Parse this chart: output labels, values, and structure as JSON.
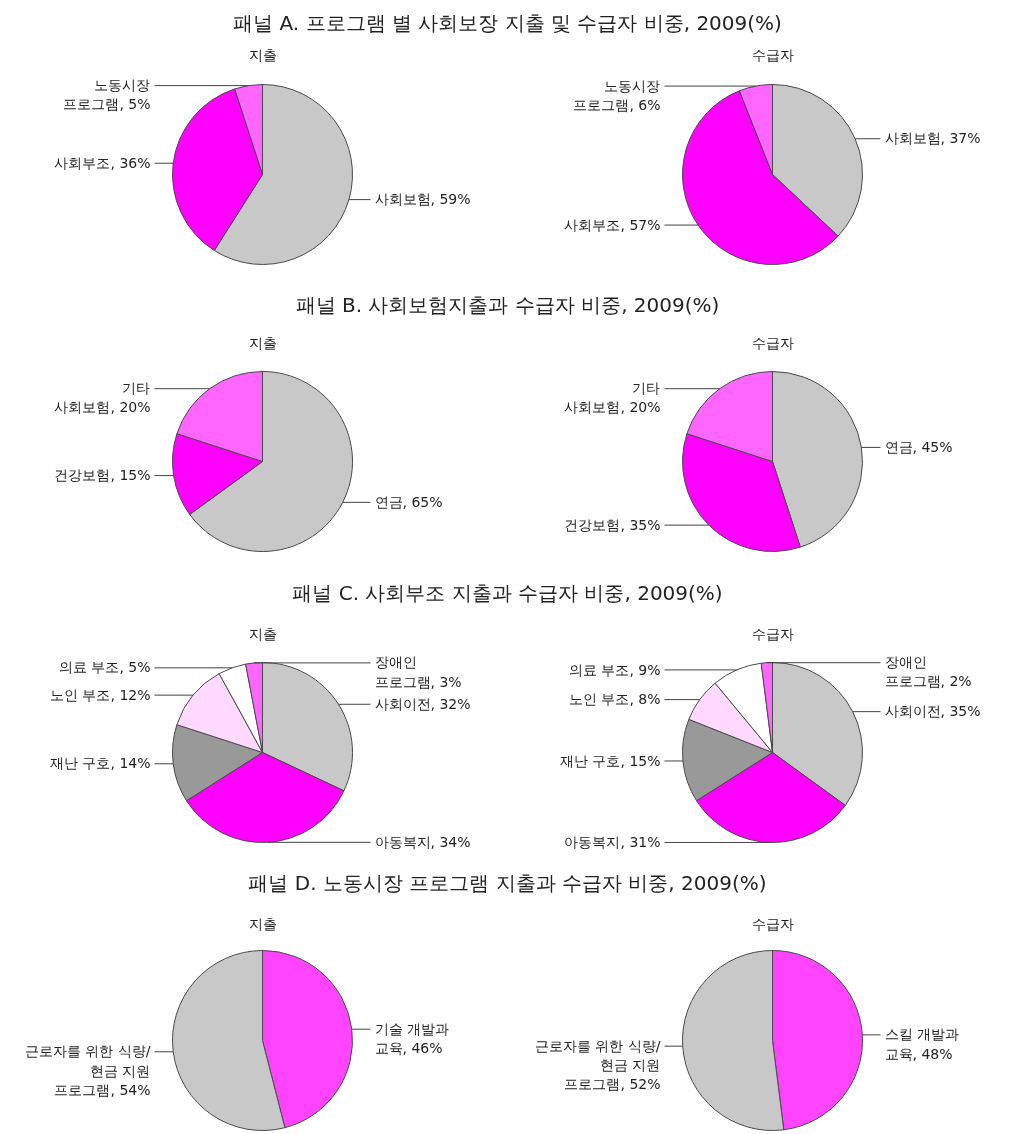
{
  "chart_data": [
    {
      "type": "pie",
      "title": "패널 A. 프로그램 별 사회보장 지출 및 수급자 비중, 2009(%)",
      "subtitle": "지출",
      "categories": [
        "사회보험",
        "사회부조",
        "노동시장\n프로그램"
      ],
      "values": [
        59,
        36,
        5
      ],
      "value_labels": [
        "59%",
        "36%",
        "5%"
      ],
      "colors": [
        "#c8c8c8",
        "#ff00ff",
        "#ff66ff"
      ]
    },
    {
      "type": "pie",
      "subtitle": "수급자",
      "categories": [
        "사회보험",
        "사회부조",
        "노동시장\n프로그램"
      ],
      "values": [
        37,
        57,
        6
      ],
      "value_labels": [
        "37%",
        "57%",
        "6%"
      ],
      "colors": [
        "#c8c8c8",
        "#ff00ff",
        "#ff66ff"
      ]
    },
    {
      "type": "pie",
      "title": "패널 B. 사회보험지출과 수급자 비중, 2009(%)",
      "subtitle": "지출",
      "categories": [
        "연금",
        "건강보험",
        "기타\n사회보험"
      ],
      "values": [
        65,
        15,
        20
      ],
      "value_labels": [
        "65%",
        "15%",
        "20%"
      ],
      "colors": [
        "#c8c8c8",
        "#ff00ff",
        "#ff66ff"
      ]
    },
    {
      "type": "pie",
      "subtitle": "수급자",
      "categories": [
        "연금",
        "건강보험",
        "기타\n사회보험"
      ],
      "values": [
        45,
        35,
        20
      ],
      "value_labels": [
        "45%",
        "35%",
        "20%"
      ],
      "colors": [
        "#c8c8c8",
        "#ff00ff",
        "#ff66ff"
      ]
    },
    {
      "type": "pie",
      "title": "패널 C. 사회부조 지출과 수급자 비중, 2009(%)",
      "subtitle": "지출",
      "categories": [
        "사회이전",
        "아동복지",
        "재난 구호",
        "노인 부조",
        "의료 부조",
        "장애인\n프로그램"
      ],
      "values": [
        32,
        34,
        14,
        12,
        5,
        3
      ],
      "value_labels": [
        "32%",
        "34%",
        "14%",
        "12%",
        "5%",
        "3%"
      ],
      "colors": [
        "#c8c8c8",
        "#ff00ff",
        "#999999",
        "#ffd9ff",
        "#ffffff",
        "#ff66ff"
      ]
    },
    {
      "type": "pie",
      "subtitle": "수급자",
      "categories": [
        "사회이전",
        "아동복지",
        "재난 구호",
        "노인 부조",
        "의료 부조",
        "장애인\n프로그램"
      ],
      "values": [
        35,
        31,
        15,
        8,
        9,
        2
      ],
      "value_labels": [
        "35%",
        "31%",
        "15%",
        "8%",
        "9%",
        "2%"
      ],
      "colors": [
        "#c8c8c8",
        "#ff00ff",
        "#999999",
        "#ffd9ff",
        "#ffffff",
        "#ff66ff"
      ]
    },
    {
      "type": "pie",
      "title": "패널 D. 노동시장 프로그램 지출과 수급자 비중, 2009(%)",
      "subtitle": "지출",
      "categories": [
        "기술 개발과\n교육",
        "근로자를 위한 식량/\n현금 지원\n프로그램"
      ],
      "values": [
        46,
        54
      ],
      "value_labels": [
        "46%",
        "54%"
      ],
      "colors": [
        "#ff44ff",
        "#c8c8c8"
      ]
    },
    {
      "type": "pie",
      "subtitle": "수급자",
      "categories": [
        "스킬 개발과\n교육",
        "근로자를 위한 식량/\n현금 지원\n프로그램"
      ],
      "values": [
        48,
        52
      ],
      "value_labels": [
        "48%",
        "52%"
      ],
      "colors": [
        "#ff44ff",
        "#c8c8c8"
      ]
    }
  ]
}
